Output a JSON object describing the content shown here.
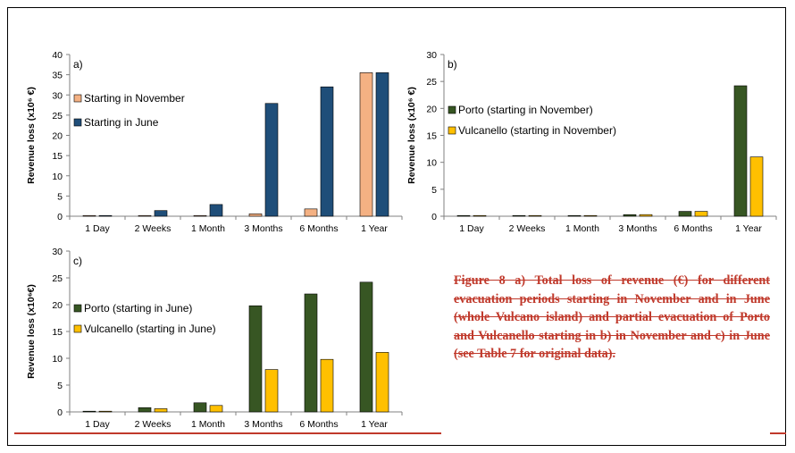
{
  "chart_data": [
    {
      "type": "bar",
      "panel_label": "a)",
      "categories": [
        "1 Day",
        "2 Weeks",
        "1 Month",
        "3 Months",
        "6 Months",
        "1 Year"
      ],
      "ylabel": "Revenue loss (x10⁶ €)",
      "ylim": [
        0,
        40
      ],
      "yticks": [
        "0",
        "5",
        "10",
        "15",
        "20",
        "25",
        "30",
        "35",
        "40"
      ],
      "grid": false,
      "legend_position": "center-left",
      "series": [
        {
          "name": "Starting in November",
          "color": "#f4b183",
          "values": [
            0,
            0,
            0.1,
            0.6,
            1.8,
            35.5
          ]
        },
        {
          "name": "Starting in June",
          "color": "#1f4e79",
          "values": [
            0,
            1.4,
            2.9,
            27.9,
            32,
            35.5
          ]
        }
      ]
    },
    {
      "type": "bar",
      "panel_label": "b)",
      "categories": [
        "1 Day",
        "2 Weeks",
        "1 Month",
        "3 Months",
        "6 Months",
        "1 Year"
      ],
      "ylabel": "Revenue loss (x10⁶ €)",
      "ylim": [
        0,
        30
      ],
      "yticks": [
        "0",
        "5",
        "10",
        "15",
        "20",
        "25",
        "30"
      ],
      "grid": false,
      "legend_position": "center-left",
      "series": [
        {
          "name": "Porto (starting in November)",
          "color": "#375623",
          "values": [
            0,
            0,
            0,
            0.3,
            0.9,
            24.2
          ]
        },
        {
          "name": "Vulcanello (starting in November)",
          "color": "#ffc000",
          "values": [
            0,
            0,
            0,
            0.3,
            0.9,
            11
          ]
        }
      ]
    },
    {
      "type": "bar",
      "panel_label": "c)",
      "categories": [
        "1 Day",
        "2 Weeks",
        "1 Month",
        "3 Months",
        "6 Months",
        "1 Year"
      ],
      "ylabel": "Revenue loss (x10⁶€)",
      "ylim": [
        0,
        30
      ],
      "yticks": [
        "0",
        "5",
        "10",
        "15",
        "20",
        "25",
        "30"
      ],
      "grid": false,
      "legend_position": "center-left",
      "series": [
        {
          "name": "Porto (starting in June)",
          "color": "#375623",
          "values": [
            0,
            0.8,
            1.7,
            19.8,
            22,
            24.2
          ]
        },
        {
          "name": "Vulcanello (starting in June)",
          "color": "#ffc000",
          "values": [
            0,
            0.6,
            1.2,
            7.9,
            9.8,
            11.1
          ]
        }
      ]
    }
  ],
  "caption": "Figure 8 a) Total loss of revenue (€) for different evacuation periods starting in November and in June (whole Vulcano island) and partial evacuation of Porto and Vulcanello starting in b) in November and c) in June (see Table 7 for original data).",
  "colors": {
    "caption_red": "#c0392b",
    "axis": "#808080"
  }
}
